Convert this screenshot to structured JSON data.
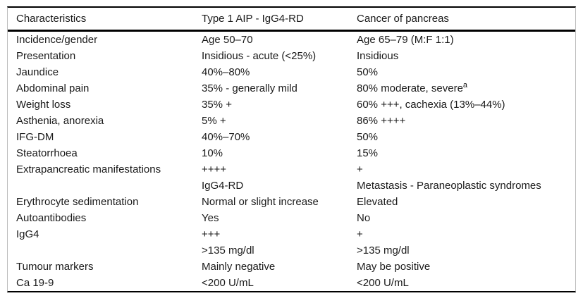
{
  "table": {
    "columns": [
      "Characteristics",
      "Type 1 AIP - IgG4-RD",
      "Cancer of pancreas"
    ],
    "rows": [
      {
        "c0": "Incidence/gender",
        "c1": "Age 50–70",
        "c2": "Age 65–79 (M:F 1:1)"
      },
      {
        "c0": "Presentation",
        "c1": "Insidious - acute (<25%)",
        "c2": "Insidious"
      },
      {
        "c0": "Jaundice",
        "c1": "40%–80%",
        "c2": "50%"
      },
      {
        "c0": "Abdominal pain",
        "c1": "35% - generally mild",
        "c2": "80% moderate, severe",
        "c2_sup": "a"
      },
      {
        "c0": "Weight loss",
        "c1": "35% +",
        "c2": "60% +++, cachexia (13%–44%)"
      },
      {
        "c0": "Asthenia, anorexia",
        "c1": "5% +",
        "c2": "86% ++++"
      },
      {
        "c0": "IFG-DM",
        "c1": "40%–70%",
        "c2": "50%"
      },
      {
        "c0": "Steatorrhoea",
        "c1": "10%",
        "c2": "15%"
      },
      {
        "c0": "Extrapancreatic manifestations",
        "c1": "++++",
        "c2": "+"
      },
      {
        "c0": "",
        "c1": "IgG4-RD",
        "c2": "Metastasis - Paraneoplastic syndromes"
      },
      {
        "c0": "Erythrocyte sedimentation",
        "c1": "Normal or slight increase",
        "c2": "Elevated"
      },
      {
        "c0": "Autoantibodies",
        "c1": "Yes",
        "c2": "No"
      },
      {
        "c0": "IgG4",
        "c1": "+++",
        "c2": "+"
      },
      {
        "c0": "",
        "c1": ">135 mg/dl",
        "c2": ">135 mg/dl"
      },
      {
        "c0": "Tumour markers",
        "c1": "Mainly negative",
        "c2": "May be positive"
      },
      {
        "c0": "Ca 19-9",
        "c1": "<200 U/mL",
        "c2": "<200 U/mL"
      }
    ]
  },
  "colors": {
    "text": "#1a1a1a",
    "rule": "#000000",
    "side_border": "#bdbdbd",
    "background": "#ffffff"
  }
}
